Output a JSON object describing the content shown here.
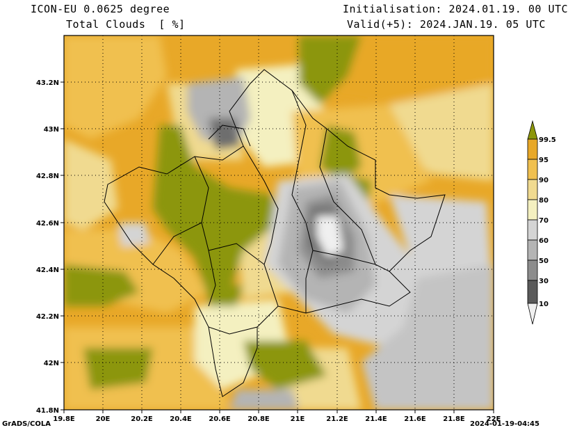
{
  "header": {
    "model": "ICON-EU 0.0625 degree",
    "variable": "Total Clouds  [ %]",
    "init": "Initialisation: 2024.01.19. 00 UTC",
    "valid": "Valid(+5): 2024.JAN.19. 05 UTC"
  },
  "footer": {
    "software": "GrADS/COLA",
    "timestamp": "2024-01-19-04:45"
  },
  "axes": {
    "x_ticks": [
      "19.8E",
      "20E",
      "20.2E",
      "20.4E",
      "20.6E",
      "20.8E",
      "21E",
      "21.2E",
      "21.4E",
      "21.6E",
      "21.8E",
      "22E"
    ],
    "y_ticks": [
      "41.8N",
      "42N",
      "42.2N",
      "42.4N",
      "42.6N",
      "42.8N",
      "43N",
      "43.2N"
    ],
    "lon_range": [
      19.8,
      22.0
    ],
    "lat_range": [
      41.8,
      43.4
    ]
  },
  "legend": {
    "labels": [
      "99.5",
      "95",
      "90",
      "80",
      "70",
      "60",
      "50",
      "30",
      "10"
    ],
    "colors": [
      "#8c960a",
      "#e8a828",
      "#f0c050",
      "#f0da90",
      "#f4f0c0",
      "#d4d4d4",
      "#b4b4b4",
      "#8c8c8c",
      "#5a5a5a",
      "#f0f0f0"
    ]
  }
}
